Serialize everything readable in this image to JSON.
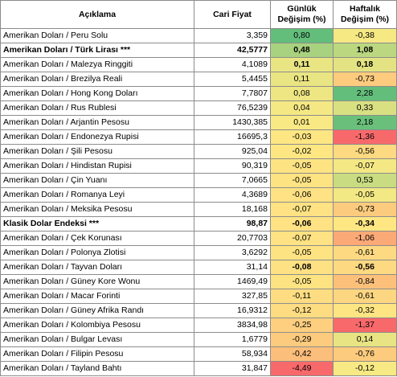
{
  "headers": {
    "name": "Açıklama",
    "price": "Cari Fiyat",
    "daily": "Günlük Değişim (%)",
    "weekly": "Haftalık Değişim (%)"
  },
  "rows": [
    {
      "name": "Amerikan Doları / Peru Solu",
      "price": "3,359",
      "daily": "0,80",
      "weekly": "-0,38",
      "daily_color": "#63be7b",
      "weekly_color": "#f6e883",
      "bold": false
    },
    {
      "name": "Amerikan Doları / Türk Lirası ***",
      "price": "42,5777",
      "daily": "0,48",
      "weekly": "1,08",
      "daily_color": "#a8d27f",
      "weekly_color": "#bbd780",
      "bold": true
    },
    {
      "name": "Amerikan Doları / Malezya Ringgiti",
      "price": "4,1089",
      "daily": "0,11",
      "weekly": "0,18",
      "daily_color": "#eae583",
      "weekly_color": "#e4e383",
      "bold_vals": true
    },
    {
      "name": "Amerikan Doları / Brezilya Reali",
      "price": "5,4455",
      "daily": "0,11",
      "weekly": "-0,73",
      "daily_color": "#eae583",
      "weekly_color": "#fccb7d"
    },
    {
      "name": "Amerikan Doları / Hong Kong Doları",
      "price": "7,7807",
      "daily": "0,08",
      "weekly": "2,28",
      "daily_color": "#eee683",
      "weekly_color": "#63be7b"
    },
    {
      "name": "Amerikan Doları / Rus Rublesi",
      "price": "76,5239",
      "daily": "0,04",
      "weekly": "0,33",
      "daily_color": "#f4e884",
      "weekly_color": "#d9e082"
    },
    {
      "name": "Amerikan Doları / Arjantin Pesosu",
      "price": "1430,385",
      "daily": "0,01",
      "weekly": "2,18",
      "daily_color": "#f8e984",
      "weekly_color": "#6ac07b"
    },
    {
      "name": "Amerikan Doları / Endonezya Rupisi",
      "price": "16695,3",
      "daily": "-0,03",
      "weekly": "-1,36",
      "daily_color": "#fee683",
      "weekly_color": "#f8696b"
    },
    {
      "name": "Amerikan Doları / Şili Pesosu",
      "price": "925,04",
      "daily": "-0,02",
      "weekly": "-0,56",
      "daily_color": "#fee783",
      "weekly_color": "#fdd981"
    },
    {
      "name": "Amerikan Doları / Hindistan Rupisi",
      "price": "90,319",
      "daily": "-0,05",
      "weekly": "-0,07",
      "daily_color": "#fee383",
      "weekly_color": "#f4e884"
    },
    {
      "name": "Amerikan Doları / Çin Yuanı",
      "price": "7,0665",
      "daily": "-0,05",
      "weekly": "0,53",
      "daily_color": "#fee383",
      "weekly_color": "#c9dc81"
    },
    {
      "name": "Amerikan Doları / Romanya Leyi",
      "price": "4,3689",
      "daily": "-0,06",
      "weekly": "-0,05",
      "daily_color": "#fee283",
      "weekly_color": "#f2e884"
    },
    {
      "name": "Amerikan Doları / Meksika Pesosu",
      "price": "18,168",
      "daily": "-0,07",
      "weekly": "-0,73",
      "daily_color": "#fee283",
      "weekly_color": "#fccb7d"
    },
    {
      "name": "Klasik Dolar Endeksi ***",
      "price": "98,87",
      "daily": "-0,06",
      "weekly": "-0,34",
      "daily_color": "#fee283",
      "weekly_color": "#fee783",
      "bold": true
    },
    {
      "name": "Amerikan Doları / Çek Korunası",
      "price": "20,7703",
      "daily": "-0,07",
      "weekly": "-1,06",
      "daily_color": "#fee283",
      "weekly_color": "#fba976"
    },
    {
      "name": "Amerikan Doları / Polonya Zlotisi",
      "price": "3,6292",
      "daily": "-0,05",
      "weekly": "-0,61",
      "daily_color": "#fee383",
      "weekly_color": "#fdd981"
    },
    {
      "name": "Amerikan Doları / Tayvan Doları",
      "price": "31,14",
      "daily": "-0,08",
      "weekly": "-0,56",
      "daily_color": "#fee183",
      "weekly_color": "#fdd981",
      "bold_vals": true
    },
    {
      "name": "Amerikan Doları / Güney Kore Wonu",
      "price": "1469,49",
      "daily": "-0,05",
      "weekly": "-0,84",
      "daily_color": "#fee383",
      "weekly_color": "#fcc07b"
    },
    {
      "name": "Amerikan Doları / Macar Forinti",
      "price": "327,85",
      "daily": "-0,11",
      "weekly": "-0,61",
      "daily_color": "#fedd82",
      "weekly_color": "#fdd681"
    },
    {
      "name": "Amerikan Doları / Güney Afrika Randı",
      "price": "16,9312",
      "daily": "-0,12",
      "weekly": "-0,32",
      "daily_color": "#fedc82",
      "weekly_color": "#fee583"
    },
    {
      "name": "Amerikan Doları / Kolombiya Pesosu",
      "price": "3834,98",
      "daily": "-0,25",
      "weekly": "-1,37",
      "daily_color": "#fdcf7f",
      "weekly_color": "#f8696b"
    },
    {
      "name": "Amerikan Doları / Bulgar Levası",
      "price": "1,6779",
      "daily": "-0,29",
      "weekly": "0,14",
      "daily_color": "#fdcb7e",
      "weekly_color": "#e8e483"
    },
    {
      "name": "Amerikan Doları / Filipin Pesosu",
      "price": "58,934",
      "daily": "-0,42",
      "weekly": "-0,76",
      "daily_color": "#fcbe7b",
      "weekly_color": "#fccb7d"
    },
    {
      "name": "Amerikan Doları / Tayland Bahtı",
      "price": "31,847",
      "daily": "-4,49",
      "weekly": "-0,12",
      "daily_color": "#f8696b",
      "weekly_color": "#f7e984"
    }
  ]
}
